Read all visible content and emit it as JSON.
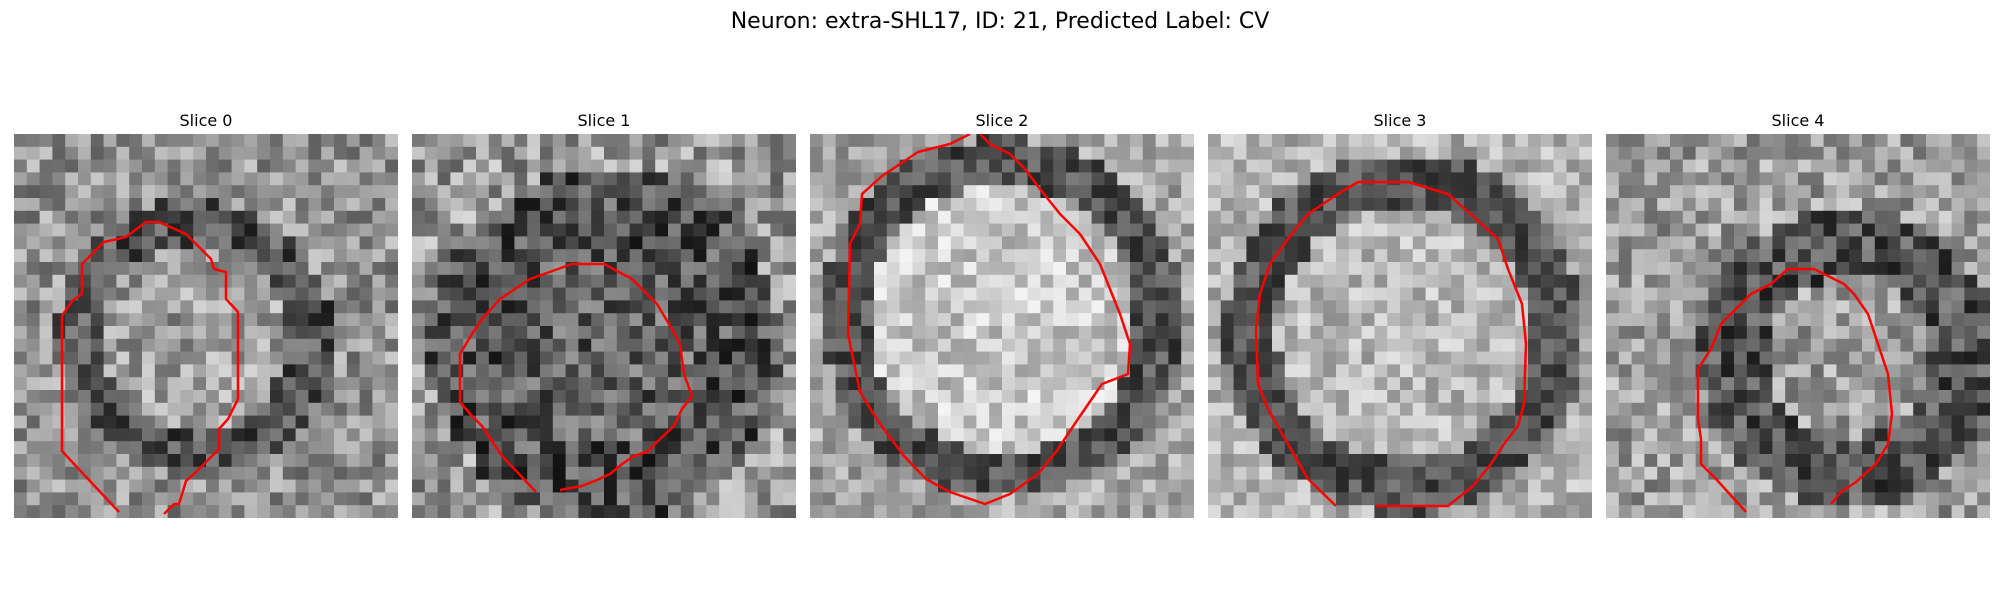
{
  "figure": {
    "title": "Neuron: extra-SHL17, ID: 21, Predicted Label: CV"
  },
  "panels": [
    {
      "title": "Slice 0"
    },
    {
      "title": "Slice 1"
    },
    {
      "title": "Slice 2"
    },
    {
      "title": "Slice 3"
    },
    {
      "title": "Slice 4"
    }
  ],
  "colors": {
    "contour": "#ff0000",
    "background": "#ffffff"
  }
}
